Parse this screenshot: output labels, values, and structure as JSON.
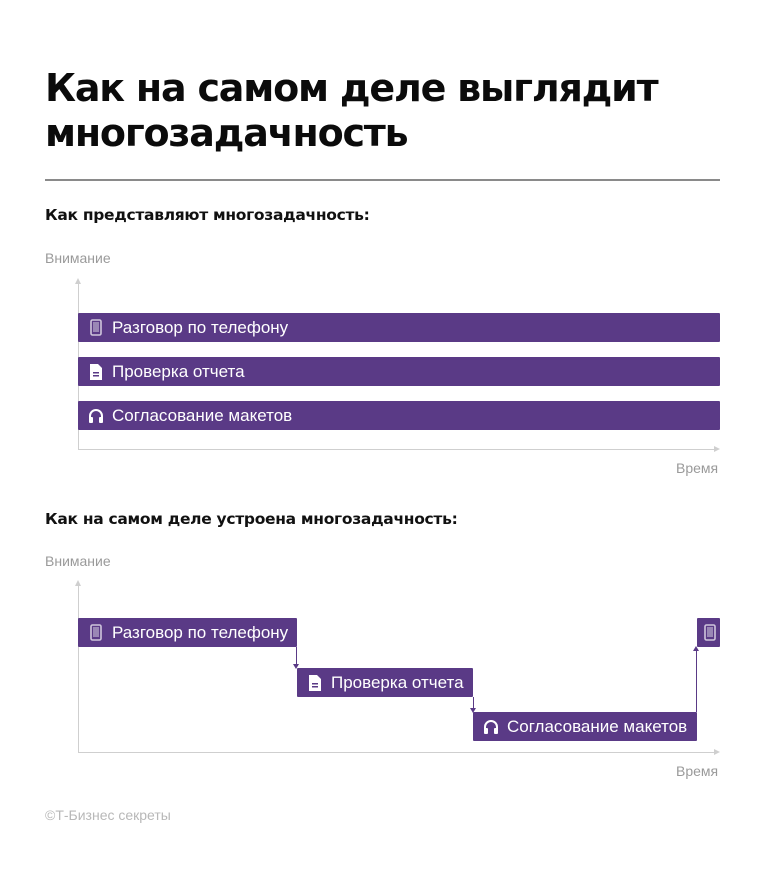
{
  "title": "Как на самом деле выглядит многозадачность",
  "section1": {
    "heading": "Как представляют многозадачность:",
    "y_axis_label": "Внимание",
    "x_axis_label": "Время",
    "bars": [
      {
        "label": "Разговор по телефону",
        "icon": "phone-icon"
      },
      {
        "label": "Проверка отчета",
        "icon": "document-icon"
      },
      {
        "label": "Согласование макетов",
        "icon": "headset-icon"
      }
    ]
  },
  "section2": {
    "heading": "Как на самом деле устроена многозадачность:",
    "y_axis_label": "Внимание",
    "x_axis_label": "Время",
    "bars": [
      {
        "label": "Разговор по телефону",
        "icon": "phone-icon"
      },
      {
        "label": "Проверка отчета",
        "icon": "document-icon"
      },
      {
        "label": "Согласование макетов",
        "icon": "headset-icon"
      },
      {
        "label": "",
        "icon": "phone-icon"
      }
    ]
  },
  "footer": "©Т-Бизнес секреты",
  "colors": {
    "bar": "#5a3a86",
    "axis": "#cfcfcf",
    "muted_text": "#9a9a9a"
  }
}
